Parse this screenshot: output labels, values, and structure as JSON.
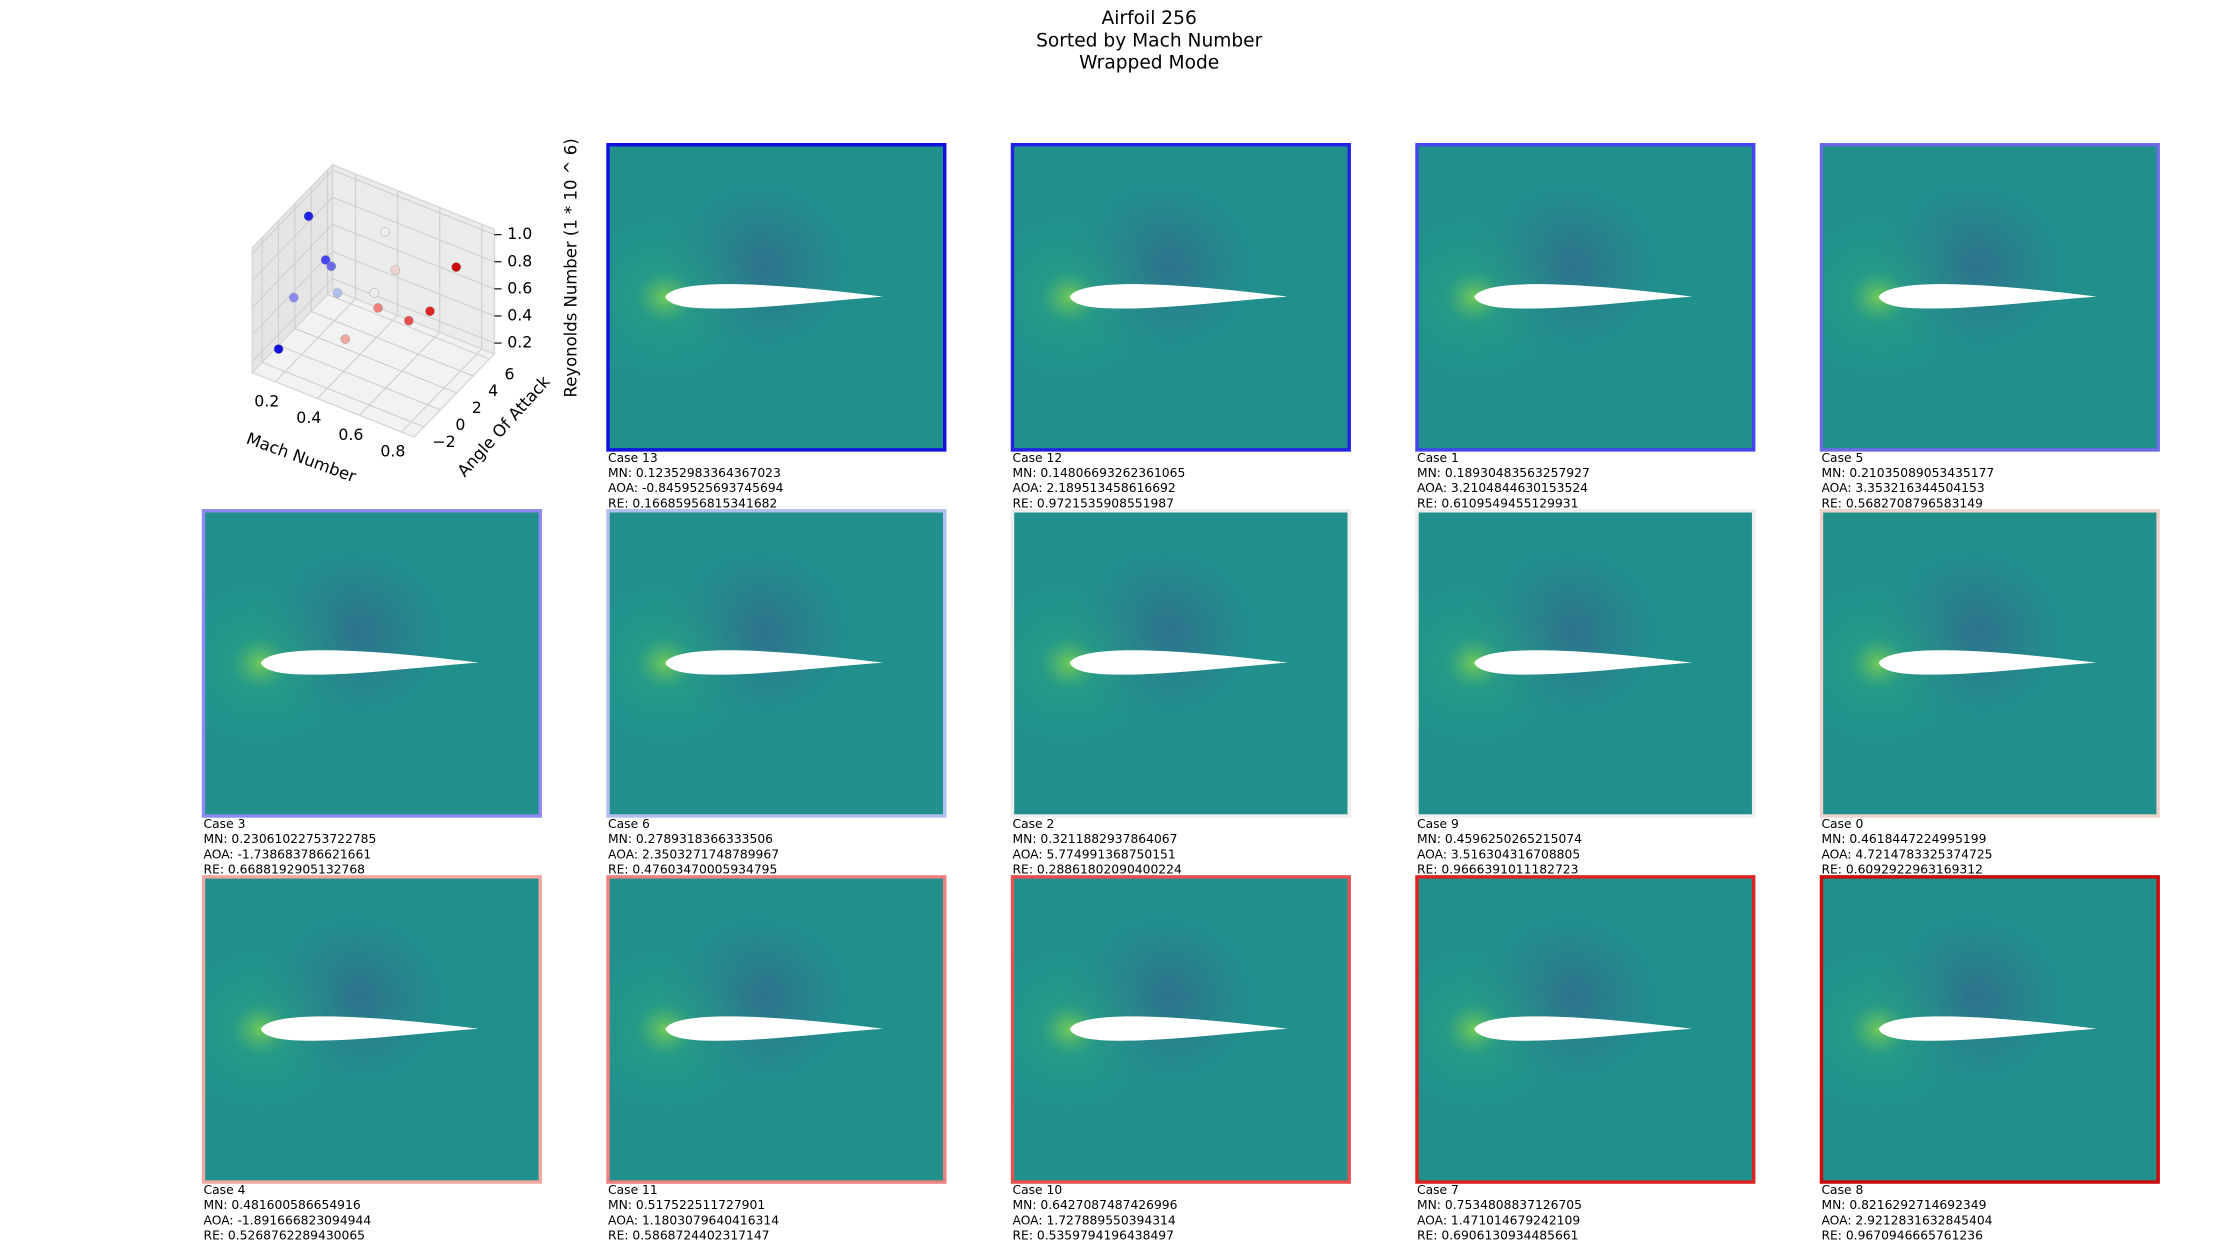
{
  "header": {
    "title": [
      "Airfoil 256",
      "Sorted by Mach Number",
      "Wrapped Mode"
    ]
  },
  "chart_data": {
    "type": "scatter3d",
    "xlabel": "Mach Number",
    "ylabel": "Angle Of Attack",
    "zlabel": "Reyonolds Number (1 * 10 ^ 6)",
    "x": [
      0.12352983364367023,
      0.14806693262361065,
      0.18930483563257927,
      0.21035089053435177,
      0.23061022753722785,
      0.2789318366333506,
      0.3211882937864067,
      0.4596250265215074,
      0.4618447224995199,
      0.481600586654916,
      0.517522511727901,
      0.6427087487426996,
      0.7534808837126705,
      0.8216292714692349
    ],
    "y": [
      -0.8459525693745694,
      2.189513458616692,
      3.2104844630153524,
      3.353216344504153,
      -1.738683786621661,
      2.3503271748789967,
      5.774991368750151,
      3.516304316708805,
      4.7214783325374725,
      -1.891666823094944,
      1.1803079640416314,
      1.727889550394314,
      1.471014679242109,
      2.9212831632845404
    ],
    "z": [
      0.16685956815341682,
      0.9721535908551987,
      0.6109549455129931,
      0.5682708796583149,
      0.6688192905132768,
      0.47603470005934795,
      0.28861802090400224,
      0.9666391011182723,
      0.6092922963169312,
      0.5268762289430065,
      0.5868724402317147,
      0.5359794196438497,
      0.6906130934485661,
      0.9670946665761236
    ],
    "colors": [
      "#1010e0",
      "#2020e6",
      "#4545ee",
      "#6a6ae6",
      "#8a8af2",
      "#b0c0ee",
      "#eeeeee",
      "#eeeeee",
      "#f0d2cc",
      "#f0a8a0",
      "#ee8080",
      "#e65050",
      "#dd2222",
      "#cc0a0a"
    ],
    "xlim": [
      0.09,
      0.86
    ],
    "ylim": [
      -3.2,
      6.6
    ],
    "zlim": [
      0.12,
      1.04
    ],
    "xticks": [
      0.2,
      0.4,
      0.6,
      0.8
    ],
    "yticks": [
      {
        "value": -2,
        "label": "−2"
      },
      0,
      2,
      4,
      6
    ],
    "zticks": [
      0.2,
      0.4,
      0.6,
      0.8,
      {
        "value": 1,
        "label": "1.0"
      }
    ]
  },
  "panels": [
    {
      "title": "Case 13",
      "lines": [
        "MN: 0.12352983364367023",
        "AOA: -0.8459525693745694",
        "RE: 0.16685956815341682"
      ]
    },
    {
      "title": "Case 12",
      "lines": [
        "MN: 0.14806693262361065",
        "AOA: 2.189513458616692",
        "RE: 0.9721535908551987"
      ]
    },
    {
      "title": "Case 1",
      "lines": [
        "MN: 0.18930483563257927",
        "AOA: 3.2104844630153524",
        "RE: 0.6109549455129931"
      ]
    },
    {
      "title": "Case 5",
      "lines": [
        "MN: 0.21035089053435177",
        "AOA: 3.353216344504153",
        "RE: 0.5682708796583149"
      ]
    },
    {
      "title": "Case 3",
      "lines": [
        "MN: 0.23061022753722785",
        "AOA: -1.738683786621661",
        "RE: 0.6688192905132768"
      ]
    },
    {
      "title": "Case 6",
      "lines": [
        "MN: 0.2789318366333506",
        "AOA: 2.3503271748789967",
        "RE: 0.47603470005934795"
      ]
    },
    {
      "title": "Case 2",
      "lines": [
        "MN: 0.3211882937864067",
        "AOA: 5.774991368750151",
        "RE: 0.28861802090400224"
      ]
    },
    {
      "title": "Case 9",
      "lines": [
        "MN: 0.4596250265215074",
        "AOA: 3.516304316708805",
        "RE: 0.9666391011182723"
      ]
    },
    {
      "title": "Case 0",
      "lines": [
        "MN: 0.4618447224995199",
        "AOA: 4.7214783325374725",
        "RE: 0.6092922963169312"
      ]
    },
    {
      "title": "Case 4",
      "lines": [
        "MN: 0.481600586654916",
        "AOA: -1.891666823094944",
        "RE: 0.5268762289430065"
      ]
    },
    {
      "title": "Case 11",
      "lines": [
        "MN: 0.517522511727901",
        "AOA: 1.1803079640416314",
        "RE: 0.5868724402317147"
      ]
    },
    {
      "title": "Case 10",
      "lines": [
        "MN: 0.6427087487426996",
        "AOA: 1.727889550394314",
        "RE: 0.5359794196438497"
      ]
    },
    {
      "title": "Case 7",
      "lines": [
        "MN: 0.7534808837126705",
        "AOA: 1.471014679242109",
        "RE: 0.6906130934485661"
      ]
    },
    {
      "title": "Case 8",
      "lines": [
        "MN: 0.8216292714692349",
        "AOA: 2.9212831632845404",
        "RE: 0.9670946665761236"
      ]
    }
  ]
}
